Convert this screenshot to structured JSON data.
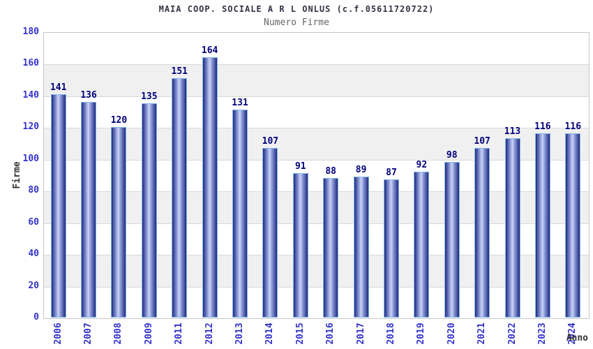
{
  "header": {
    "title": "MAIA COOP. SOCIALE A R L ONLUS (c.f.05611720722)",
    "subtitle": "Numero Firme"
  },
  "chart_data": {
    "type": "bar",
    "title": "MAIA COOP. SOCIALE A R L ONLUS (c.f.05611720722)",
    "subtitle": "Numero Firme",
    "categories": [
      "2006",
      "2007",
      "2008",
      "2009",
      "2011",
      "2012",
      "2013",
      "2014",
      "2015",
      "2016",
      "2017",
      "2018",
      "2019",
      "2020",
      "2021",
      "2022",
      "2023",
      "2024"
    ],
    "values": [
      141,
      136,
      120,
      135,
      151,
      164,
      131,
      107,
      91,
      88,
      89,
      87,
      92,
      98,
      107,
      113,
      116,
      116
    ],
    "xlabel": "Anno",
    "ylabel": "Firme",
    "ylim": [
      0,
      180
    ],
    "ytick_step": 20,
    "yticks": [
      0,
      20,
      40,
      60,
      80,
      100,
      120,
      140,
      160,
      180
    ],
    "grid": "horizontal alternating bands",
    "legend": "none",
    "colors": {
      "bar_edge": "#1e2b7e",
      "bar_mid_light": "#ccd4f4",
      "bar_mid": "#8c99d8",
      "bar_border": "#85b7ea",
      "value_label": "#00007a",
      "tick_label": "#3333cc",
      "band": "#f0f0f0",
      "gridline": "#d9d9d9",
      "plot_border": "#c8c8c8",
      "title": "#333344",
      "subtitle": "#666666",
      "axis_title": "#333333"
    }
  }
}
